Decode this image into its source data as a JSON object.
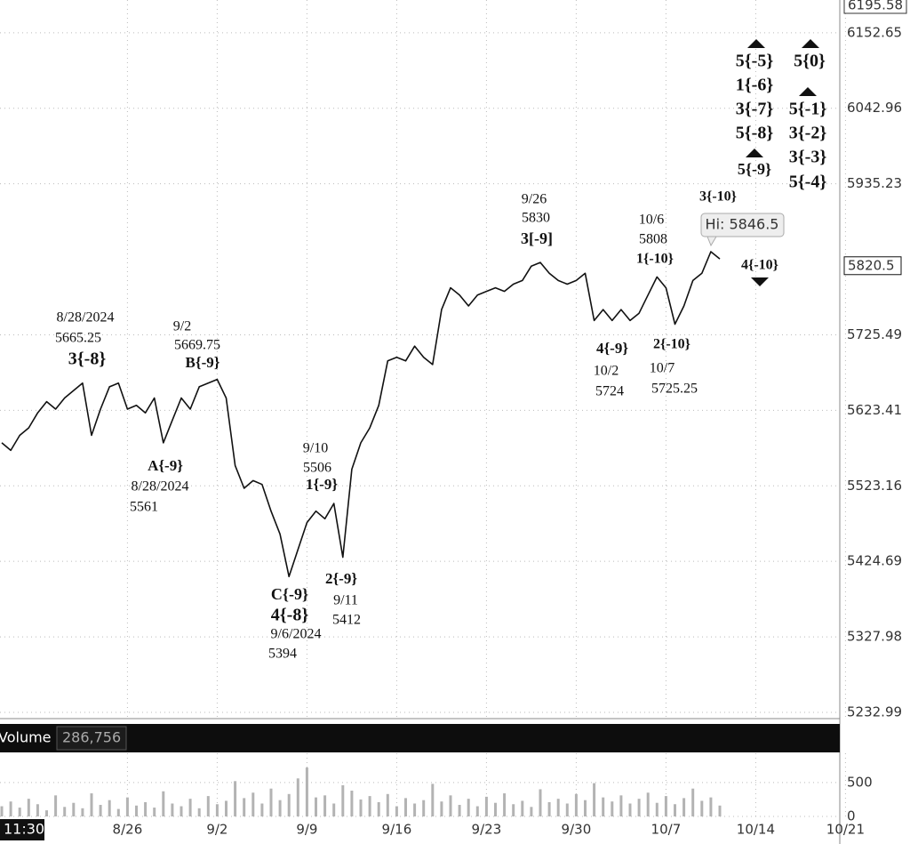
{
  "chart_data": [
    {
      "type": "line",
      "categories": [
        null,
        null,
        null,
        null,
        null,
        null,
        null,
        null,
        null,
        null,
        null,
        null,
        null,
        null,
        "8/26",
        null,
        null,
        null,
        null,
        null,
        null,
        null,
        null,
        null,
        "9/2",
        null,
        null,
        null,
        null,
        null,
        null,
        null,
        null,
        null,
        "9/9",
        null,
        null,
        null,
        null,
        null,
        null,
        null,
        null,
        null,
        "9/16",
        null,
        null,
        null,
        null,
        null,
        null,
        null,
        null,
        null,
        "9/23",
        null,
        null,
        null,
        null,
        null,
        null,
        null,
        null,
        null,
        "9/30",
        null,
        null,
        null,
        null,
        null,
        null,
        null,
        null,
        null,
        "10/7",
        null,
        null,
        null,
        null,
        null,
        null,
        null,
        null,
        null,
        "10/14",
        null,
        null,
        null,
        null,
        null,
        null,
        null,
        null,
        null,
        "10/21"
      ],
      "values": [
        5580,
        5570,
        5590,
        5600,
        5620,
        5635,
        5625,
        5640,
        5650,
        5660,
        5590,
        5625,
        5655,
        5660,
        5625,
        5630,
        5620,
        5640,
        5580,
        5610,
        5640,
        5625,
        5655,
        5660,
        5665,
        5640,
        5550,
        5520,
        5530,
        5525,
        5490,
        5460,
        5405,
        5440,
        5475,
        5490,
        5480,
        5500,
        5430,
        5545,
        5580,
        5600,
        5630,
        5690,
        5695,
        5690,
        5710,
        5695,
        5685,
        5760,
        5790,
        5780,
        5765,
        5780,
        5785,
        5790,
        5785,
        5795,
        5800,
        5820,
        5825,
        5810,
        5800,
        5795,
        5800,
        5810,
        5745,
        5760,
        5745,
        5760,
        5745,
        5755,
        5780,
        5805,
        5790,
        5740,
        5765,
        5800,
        5810,
        5840,
        5830,
        null,
        null,
        null,
        null,
        null,
        null,
        null,
        null,
        null,
        null,
        null,
        null,
        null,
        null
      ],
      "color": "#111111",
      "ylim": [
        5232.99,
        6195.58
      ],
      "yticks": [
        5232.99,
        5327.98,
        5424.69,
        5523.16,
        5623.41,
        5725.49,
        5935.23,
        6042.96,
        6152.65
      ],
      "last_price": 5820.5,
      "log_scale": true,
      "grid": true,
      "high_label": "Hi: 5846.5",
      "time_label": "11:30",
      "annotations": [
        "8/28/2024",
        "5665.25",
        "3{-8}",
        "9/2",
        "5669.75",
        "B{-9}",
        "A{-9}",
        "8/28/2024",
        "5561",
        "9/10",
        "5506",
        "1{-9}",
        "C{-9}",
        "4{-8}",
        "9/6/2024",
        "5394",
        "2{-9}",
        "9/11",
        "5412",
        "9/26",
        "5830",
        "3[-9]",
        "4{-9}",
        "10/2",
        "5724",
        "10/6",
        "5808",
        "1{-10}",
        "2{-10}",
        "10/7",
        "5725.25",
        "3{-10}",
        "4{-10}",
        "5{-5}",
        "1{-6}",
        "3{-7}",
        "5{-8}",
        "5{-9}",
        "5{0}",
        "5{-1}",
        "3{-2}",
        "3{-3}",
        "5{-4}"
      ]
    },
    {
      "type": "bar",
      "title": "Volume",
      "total_label": "286,756",
      "values": [
        150,
        220,
        130,
        260,
        180,
        90,
        310,
        140,
        200,
        120,
        340,
        170,
        240,
        110,
        280,
        160,
        210,
        130,
        370,
        190,
        150,
        260,
        120,
        300,
        180,
        230,
        520,
        270,
        350,
        190,
        410,
        240,
        330,
        560,
        720,
        280,
        310,
        190,
        460,
        380,
        250,
        300,
        210,
        330,
        150,
        270,
        190,
        240,
        480,
        220,
        310,
        170,
        260,
        150,
        290,
        200,
        340,
        180,
        230,
        140,
        400,
        210,
        260,
        190,
        330,
        240,
        490,
        280,
        220,
        310,
        190,
        260,
        350,
        200,
        300,
        180,
        270,
        410,
        230,
        280,
        160,
        null,
        null,
        null,
        null,
        null,
        null,
        null,
        null,
        null,
        null,
        null,
        null,
        null,
        null
      ],
      "color": "#b3b3b3",
      "ylim": [
        0,
        930
      ],
      "yticks": [
        0,
        500
      ],
      "grid": true
    }
  ]
}
